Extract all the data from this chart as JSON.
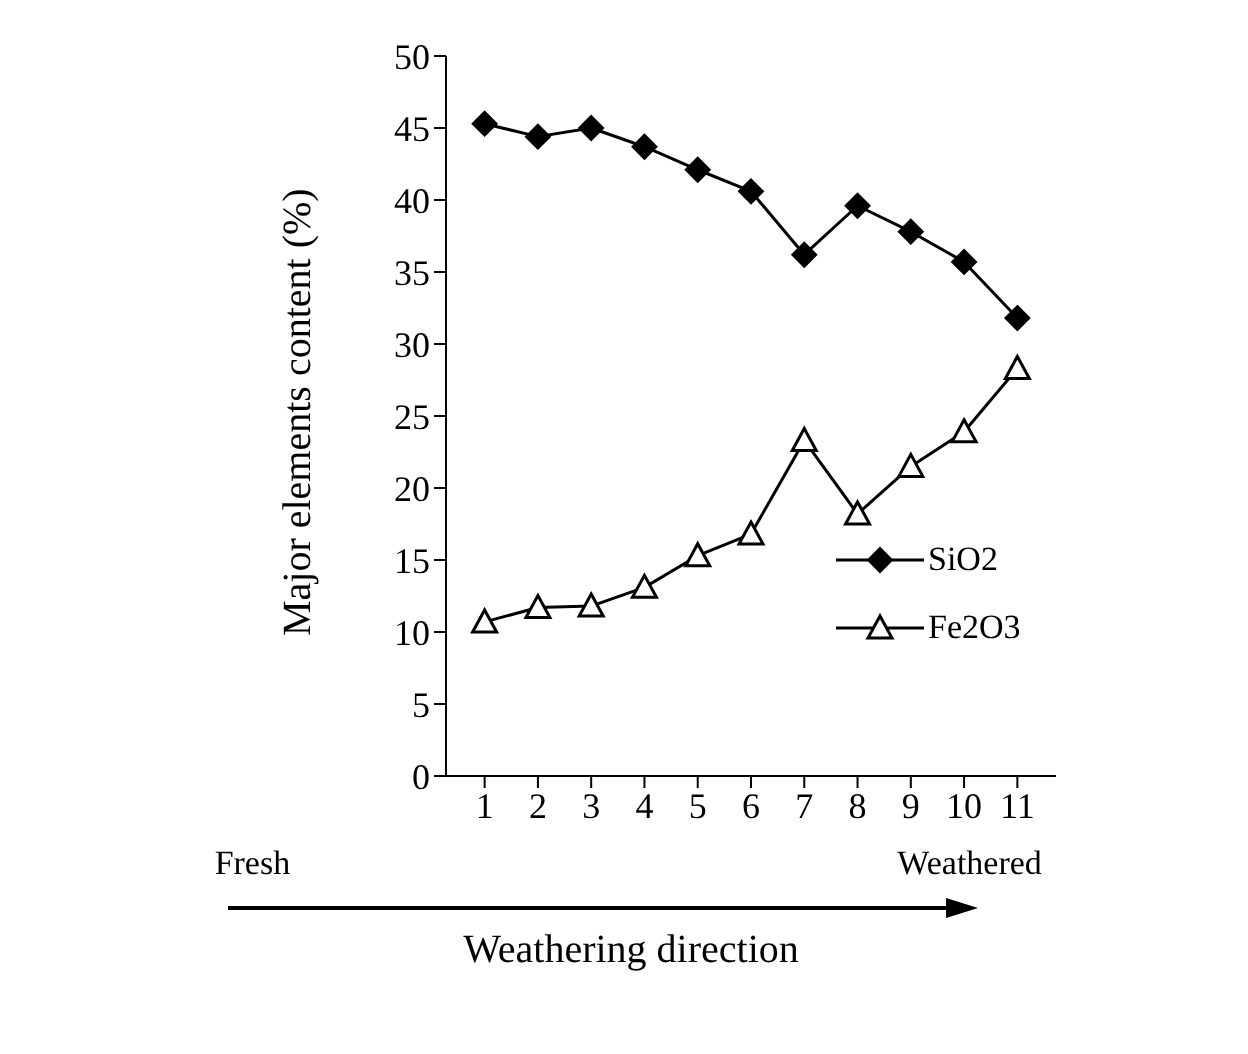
{
  "chart_data": {
    "type": "line",
    "xlabel": "Weathering direction",
    "ylabel": "Major elements content (%)",
    "categories": [
      "1",
      "2",
      "3",
      "4",
      "5",
      "6",
      "7",
      "8",
      "9",
      "10",
      "11"
    ],
    "series": [
      {
        "name": "SiO2",
        "color": "#000000",
        "marker": "diamond",
        "values": [
          45.3,
          44.4,
          45.0,
          43.7,
          42.1,
          40.6,
          36.2,
          39.6,
          37.8,
          35.7,
          31.8
        ]
      },
      {
        "name": "Fe2O3",
        "color": "#000000",
        "marker": "triangle",
        "values": [
          10.7,
          11.7,
          11.8,
          13.1,
          15.3,
          16.8,
          23.3,
          18.2,
          21.5,
          23.9,
          28.3
        ]
      }
    ],
    "ylim": [
      0,
      50
    ],
    "yticks": [
      0,
      5,
      10,
      15,
      20,
      25,
      30,
      35,
      40,
      45,
      50
    ],
    "grid": false,
    "legend": "right",
    "annotations": [
      "Fresh",
      "Weathered"
    ]
  }
}
